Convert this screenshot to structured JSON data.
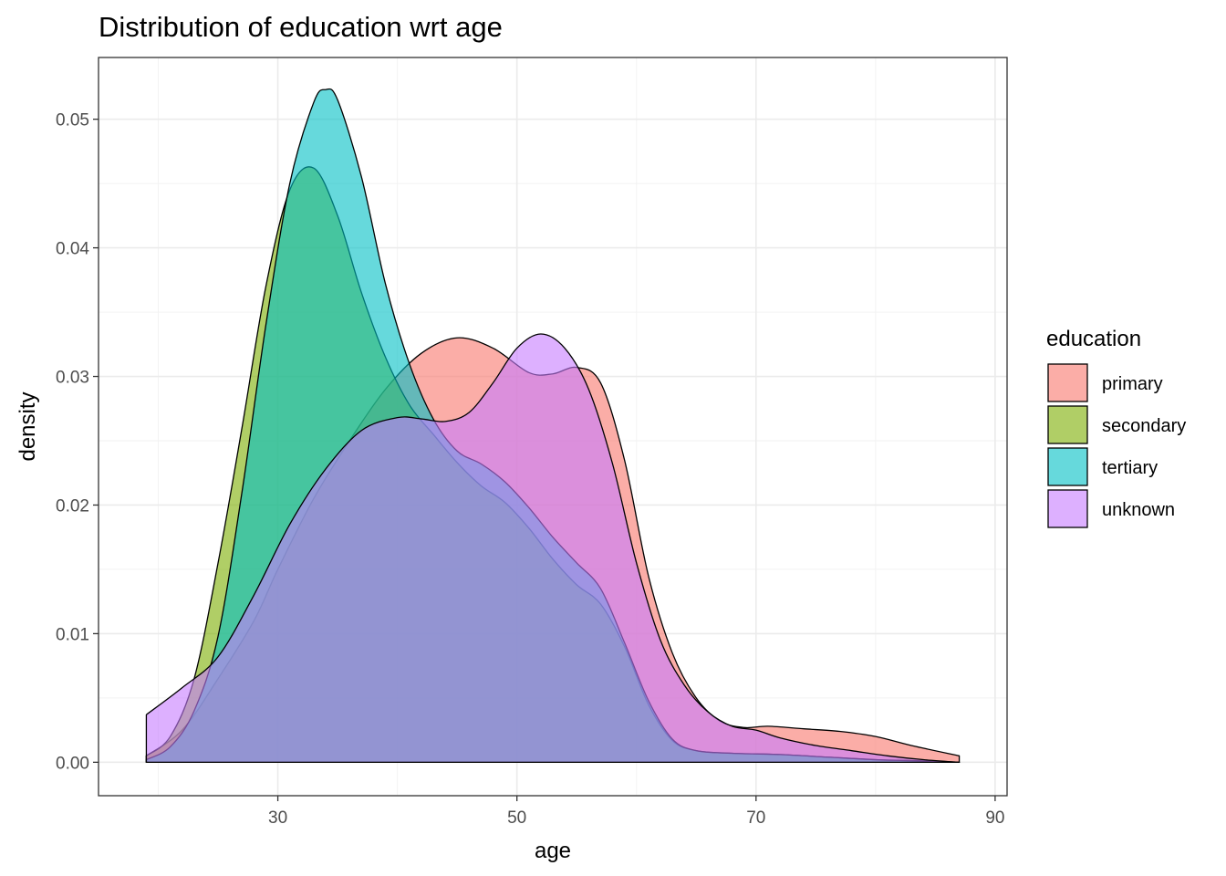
{
  "chart_data": {
    "type": "area",
    "title": "Distribution of education wrt age",
    "xlabel": "age",
    "ylabel": "density",
    "xlim": [
      15,
      91
    ],
    "ylim": [
      -0.0026,
      0.0548
    ],
    "x_ticks": [
      30,
      50,
      70,
      90
    ],
    "x_tick_labels": [
      "30",
      "50",
      "70",
      "90"
    ],
    "y_ticks": [
      0.0,
      0.01,
      0.02,
      0.03,
      0.04,
      0.05
    ],
    "y_tick_labels": [
      "0.00",
      "0.01",
      "0.02",
      "0.03",
      "0.04",
      "0.05"
    ],
    "grid": true,
    "legend": {
      "title": "education",
      "position": "right"
    },
    "colors": {
      "primary": "#F8766D",
      "secondary": "#7CAE00",
      "tertiary": "#00BFC4",
      "unknown": "#C77CFF"
    },
    "fill_opacity": 0.6,
    "series": [
      {
        "name": "primary",
        "x": [
          19,
          22,
          25,
          28,
          30,
          33,
          36,
          39,
          42,
          45,
          48,
          51,
          53,
          55,
          57,
          59,
          61,
          63,
          65,
          67,
          69,
          71,
          74,
          77,
          80,
          83,
          87
        ],
        "y": [
          0.0005,
          0.0025,
          0.0065,
          0.011,
          0.015,
          0.0205,
          0.025,
          0.029,
          0.0318,
          0.033,
          0.0322,
          0.0303,
          0.0302,
          0.0307,
          0.0295,
          0.0235,
          0.0145,
          0.0085,
          0.005,
          0.0032,
          0.0027,
          0.0028,
          0.0026,
          0.0024,
          0.002,
          0.0013,
          0.0005
        ]
      },
      {
        "name": "secondary",
        "x": [
          19,
          21,
          23,
          25,
          27,
          29,
          31,
          33,
          35,
          37,
          39,
          41,
          43,
          45,
          47,
          49,
          51,
          53,
          55,
          57,
          59,
          61,
          63,
          65,
          68,
          72,
          76,
          80,
          84,
          87
        ],
        "y": [
          0.0005,
          0.002,
          0.0065,
          0.0155,
          0.026,
          0.037,
          0.0445,
          0.0462,
          0.0425,
          0.0365,
          0.0315,
          0.0278,
          0.0255,
          0.0233,
          0.0215,
          0.0202,
          0.0182,
          0.0158,
          0.0138,
          0.0123,
          0.009,
          0.0045,
          0.0017,
          0.0009,
          0.0007,
          0.0006,
          0.0004,
          0.0002,
          0.0001,
          0.0
        ]
      },
      {
        "name": "tertiary",
        "x": [
          19,
          21,
          23,
          25,
          27,
          29,
          31,
          33,
          34,
          35,
          37,
          39,
          41,
          43,
          45,
          47,
          49,
          51,
          53,
          55,
          57,
          59,
          61,
          63,
          65,
          68,
          72,
          76,
          80,
          84,
          87
        ],
        "y": [
          0.0002,
          0.0012,
          0.004,
          0.0098,
          0.021,
          0.034,
          0.045,
          0.0513,
          0.0523,
          0.0515,
          0.0455,
          0.0372,
          0.031,
          0.0267,
          0.0242,
          0.0232,
          0.0218,
          0.0198,
          0.0175,
          0.0155,
          0.0135,
          0.0093,
          0.0048,
          0.0018,
          0.0009,
          0.0007,
          0.0006,
          0.0004,
          0.0002,
          0.0001,
          0.0
        ]
      },
      {
        "name": "unknown",
        "x": [
          19,
          22,
          25,
          28,
          31,
          34,
          37,
          40,
          42,
          44,
          46,
          48,
          50,
          52,
          54,
          56,
          58,
          60,
          62,
          64,
          66,
          68,
          70,
          72,
          75,
          78,
          81,
          84,
          87
        ],
        "y": [
          0.0037,
          0.0058,
          0.0082,
          0.013,
          0.0185,
          0.0228,
          0.0258,
          0.0268,
          0.0267,
          0.0265,
          0.0272,
          0.0295,
          0.0322,
          0.0333,
          0.0322,
          0.029,
          0.0232,
          0.0155,
          0.0095,
          0.006,
          0.0039,
          0.0028,
          0.0025,
          0.0019,
          0.0013,
          0.0009,
          0.0005,
          0.0002,
          0.0
        ]
      }
    ]
  }
}
